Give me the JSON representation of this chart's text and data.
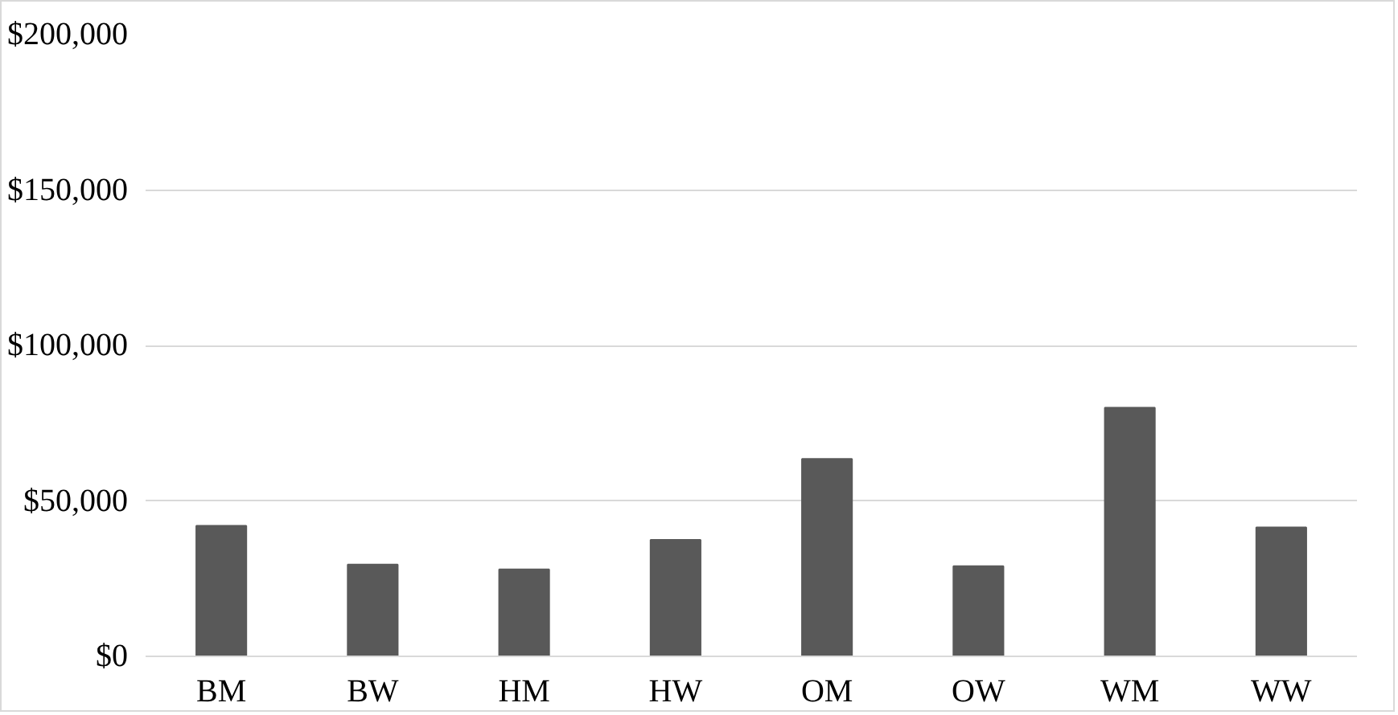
{
  "chart_data": {
    "type": "bar",
    "categories": [
      "BM",
      "BW",
      "HM",
      "HW",
      "OM",
      "OW",
      "WM",
      "WW"
    ],
    "values": [
      42000,
      29500,
      28000,
      37500,
      63500,
      29000,
      80000,
      41500
    ],
    "color": "#595959",
    "ylim": [
      0,
      200000
    ],
    "yticks": [
      {
        "value": 0,
        "label": "$0"
      },
      {
        "value": 50000,
        "label": "$50,000"
      },
      {
        "value": 100000,
        "label": "$100,000"
      },
      {
        "value": 150000,
        "label": "$150,000"
      },
      {
        "value": 200000,
        "label": "$200,000"
      }
    ],
    "grid": "y"
  }
}
